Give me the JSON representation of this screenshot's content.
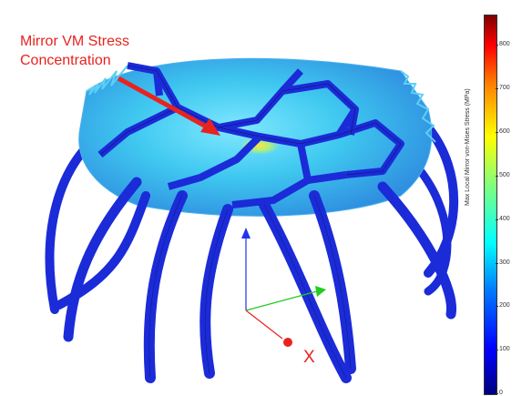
{
  "annotation": {
    "line1": "Mirror VM Stress",
    "line2": "Concentration",
    "color": "#e8231f"
  },
  "axes_triad": {
    "x_label": "X",
    "x_color": "#e8231f",
    "y_color": "#22cc22",
    "z_color": "#2233ee"
  },
  "colorbar": {
    "label": "Max Local Mirror von-Mises Stress (MPa)",
    "ticks": [
      "800",
      "700",
      "600",
      "500",
      "400",
      "300",
      "200",
      "100",
      "0"
    ],
    "range": [
      0,
      870
    ],
    "colormap": "jet"
  }
}
